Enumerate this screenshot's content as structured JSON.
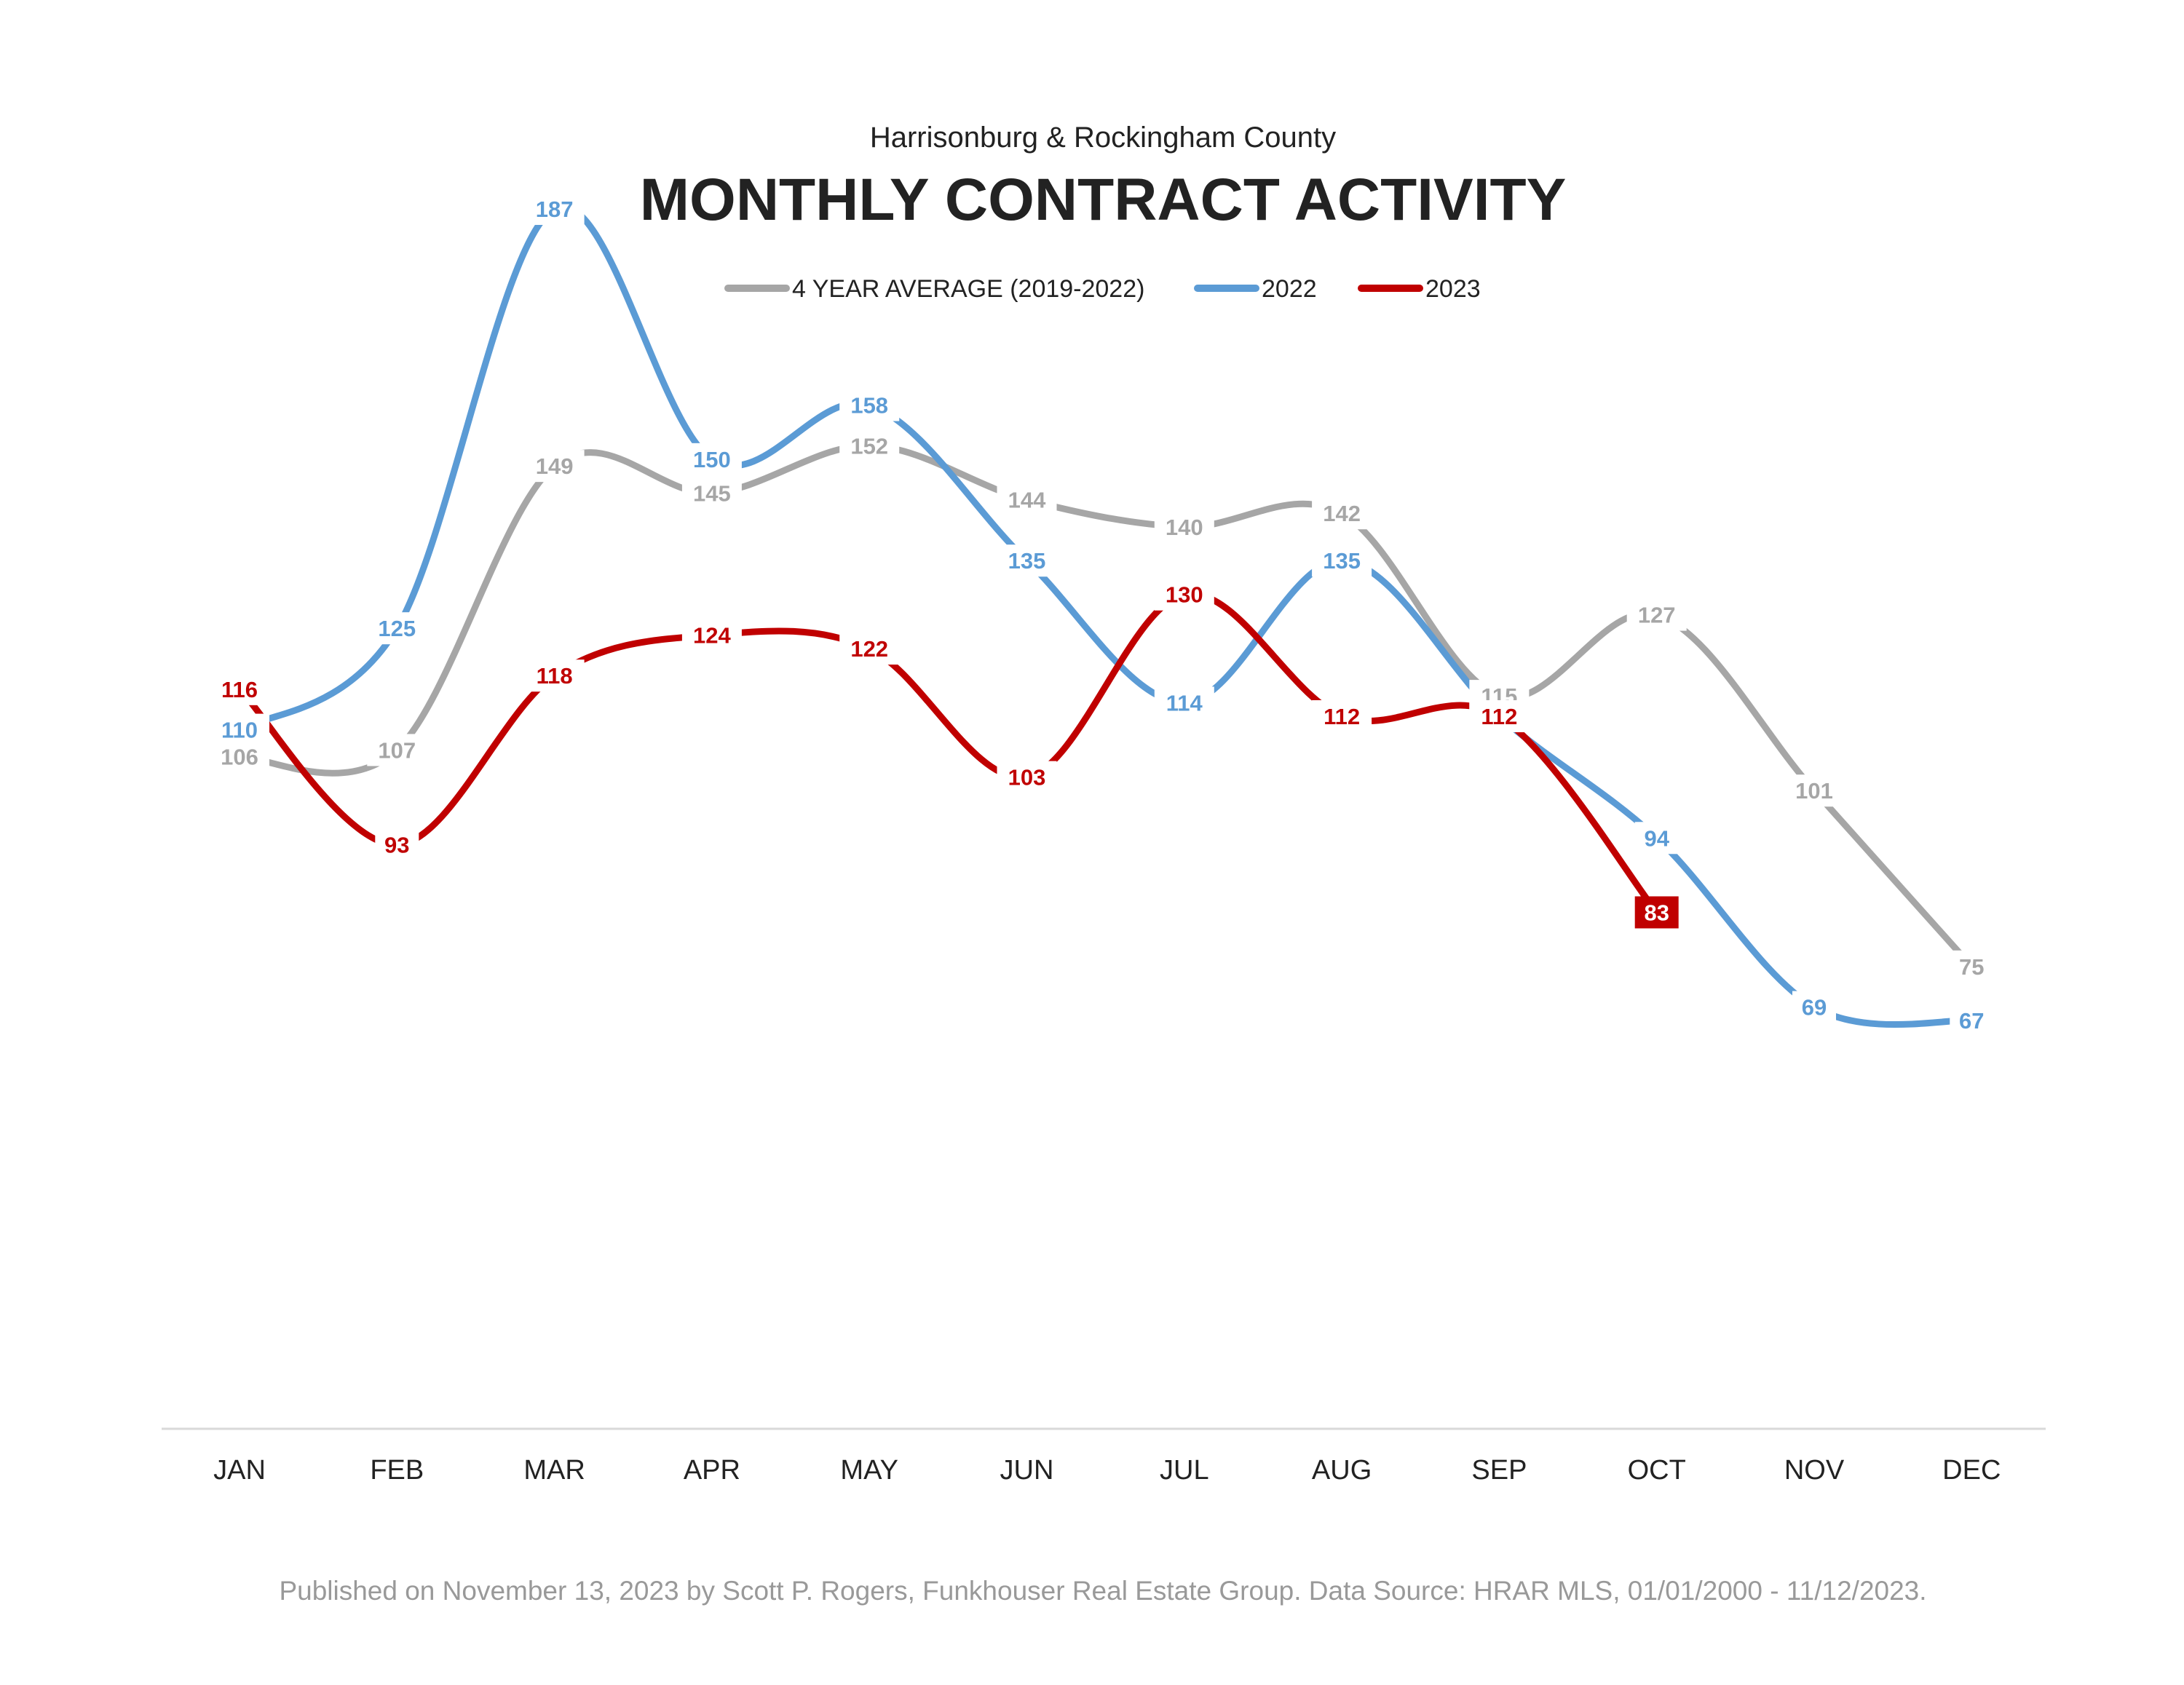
{
  "header": {
    "subtitle": "Harrisonburg & Rockingham County",
    "title": "MONTHLY CONTRACT ACTIVITY"
  },
  "footer": {
    "text": "Published on November 13, 2023 by Scott P. Rogers, Funkhouser Real Estate Group. Data Source: HRAR MLS, 01/01/2000 - 11/12/2023."
  },
  "chart_data": {
    "type": "line",
    "title": "MONTHLY CONTRACT ACTIVITY",
    "subtitle": "Harrisonburg & Rockingham County",
    "categories": [
      "JAN",
      "FEB",
      "MAR",
      "APR",
      "MAY",
      "JUN",
      "JUL",
      "AUG",
      "SEP",
      "OCT",
      "NOV",
      "DEC"
    ],
    "series": [
      {
        "name": "4 YEAR AVERAGE (2019-2022)",
        "color": "#a6a6a6",
        "values": [
          106,
          107,
          149,
          145,
          152,
          144,
          140,
          142,
          115,
          127,
          101,
          75
        ]
      },
      {
        "name": "2022",
        "color": "#5b9bd5",
        "values": [
          110,
          125,
          187,
          150,
          158,
          135,
          114,
          135,
          112,
          94,
          69,
          67
        ]
      },
      {
        "name": "2023",
        "color": "#c00000",
        "values": [
          116,
          93,
          118,
          124,
          122,
          103,
          130,
          112,
          112,
          83,
          null,
          null
        ]
      }
    ],
    "ylim": [
      0,
      200
    ],
    "grid": false,
    "legend": "top-center",
    "highlight": {
      "series": "2023",
      "category": "OCT",
      "value": 83
    }
  }
}
